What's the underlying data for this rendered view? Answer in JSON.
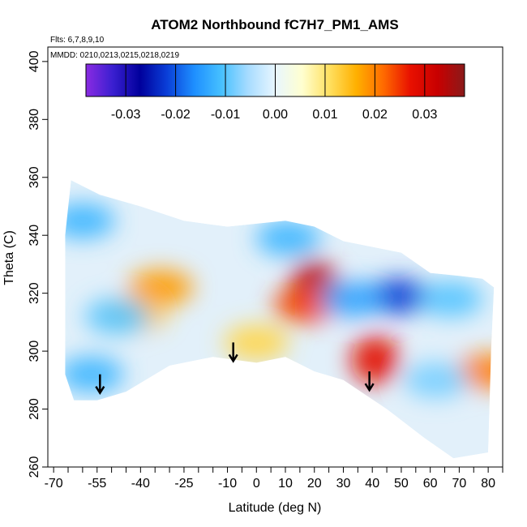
{
  "chart_data": {
    "type": "heatmap",
    "title": "ATOM2 Northbound fC7H7_PM1_AMS",
    "subtitle_flights": "Flts: 6,7,8,9,10",
    "subtitle_dates": "MMDD: 0210,0213,0215,0218,0219",
    "xlabel": "Latitude (deg N)",
    "ylabel": "Theta (C)",
    "xlim": [
      -72,
      85
    ],
    "ylim": [
      260,
      405
    ],
    "x_ticks": [
      -70,
      -55,
      -40,
      -25,
      -10,
      0,
      10,
      20,
      30,
      40,
      50,
      60,
      70,
      80
    ],
    "x_tick_labels": [
      "-70",
      "-55",
      "-40",
      "-25",
      "-10",
      "0",
      "10",
      "20",
      "30",
      "40",
      "50",
      "60",
      "70",
      "80"
    ],
    "x_minor_ticks": [
      -65,
      -60,
      -50,
      -45,
      -35,
      -30,
      -20,
      -15,
      -5,
      5,
      15,
      25,
      35,
      45,
      55,
      65,
      75,
      85
    ],
    "y_ticks": [
      260,
      280,
      300,
      320,
      340,
      360,
      380,
      400
    ],
    "y_tick_labels": [
      "260",
      "280",
      "300",
      "320",
      "340",
      "360",
      "380",
      "400"
    ],
    "colorbar": {
      "range": [
        -0.038,
        0.038
      ],
      "ticks": [
        -0.03,
        -0.02,
        -0.01,
        0.0,
        0.01,
        0.02,
        0.03
      ],
      "tick_labels": [
        "-0.03",
        "-0.02",
        "-0.01",
        "0.00",
        "0.01",
        "0.02",
        "0.03"
      ],
      "colors": [
        "#8a2be2",
        "#3a1fd0",
        "#00009c",
        "#0a3fd8",
        "#1e8fff",
        "#46c0ff",
        "#a8dcff",
        "#e8f6ff",
        "#ffffd0",
        "#ffe060",
        "#ffb000",
        "#ff6a00",
        "#e81000",
        "#c80000",
        "#8a1a1a"
      ]
    },
    "arrows": [
      {
        "lat": -54,
        "theta": 292
      },
      {
        "lat": -8,
        "theta": 303
      },
      {
        "lat": 39,
        "theta": 293
      }
    ],
    "hotspots": [
      {
        "lat": 20,
        "theta": 323,
        "value": 0.034
      },
      {
        "lat": 17,
        "theta": 316,
        "value": 0.024
      },
      {
        "lat": 41,
        "theta": 297,
        "value": 0.028
      },
      {
        "lat": -33,
        "theta": 322,
        "value": 0.018
      },
      {
        "lat": -42,
        "theta": 313,
        "value": 0.014
      },
      {
        "lat": 80,
        "theta": 293,
        "value": 0.02
      },
      {
        "lat": 0,
        "theta": 303,
        "value": 0.012
      },
      {
        "lat": -60,
        "theta": 345,
        "value": -0.012
      },
      {
        "lat": -57,
        "theta": 292,
        "value": -0.012
      },
      {
        "lat": -48,
        "theta": 312,
        "value": -0.01
      },
      {
        "lat": 49,
        "theta": 319,
        "value": -0.022
      },
      {
        "lat": 33,
        "theta": 318,
        "value": -0.014
      },
      {
        "lat": 11,
        "theta": 339,
        "value": -0.012
      },
      {
        "lat": 67,
        "theta": 318,
        "value": -0.01
      },
      {
        "lat": 62,
        "theta": 290,
        "value": -0.008
      }
    ]
  }
}
